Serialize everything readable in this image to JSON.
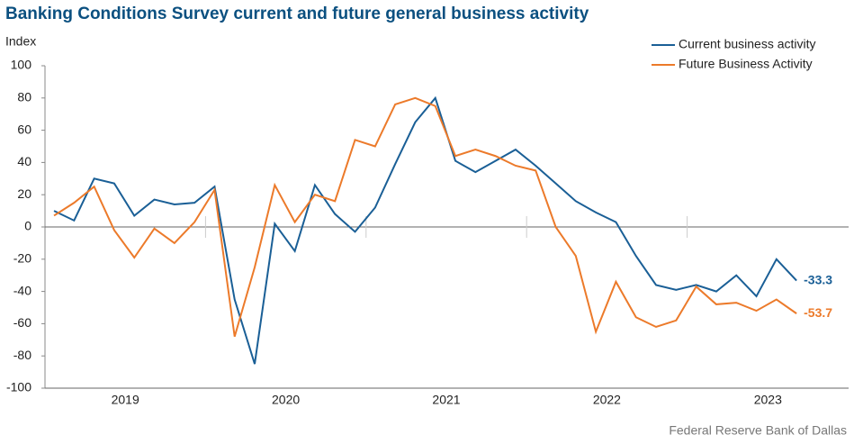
{
  "chart_data": {
    "type": "line",
    "title": "Banking Conditions Survey current and future general business activity",
    "y_label": "Index",
    "source": "Federal Reserve Bank of Dallas",
    "categories": [
      "2019",
      "2019",
      "2019",
      "2019",
      "2019",
      "2019",
      "2019",
      "2019",
      "2020",
      "2020",
      "2020",
      "2020",
      "2020",
      "2020",
      "2020",
      "2020",
      "2021",
      "2021",
      "2021",
      "2021",
      "2021",
      "2021",
      "2021",
      "2021",
      "2022",
      "2022",
      "2022",
      "2022",
      "2022",
      "2022",
      "2022",
      "2022",
      "2023",
      "2023",
      "2023",
      "2023",
      "2023",
      "2023"
    ],
    "series": [
      {
        "name": "Current business activity",
        "color": "#1a5f96",
        "values": [
          10,
          4,
          30,
          27,
          7,
          17,
          14,
          15,
          25,
          -45,
          -85,
          2,
          -15,
          26,
          8,
          -3,
          12,
          39,
          65,
          80,
          41,
          34,
          41,
          48,
          38,
          27,
          16,
          9,
          3,
          -18,
          -36,
          -39,
          -36,
          -40,
          -30,
          -43,
          -20,
          -33.3
        ]
      },
      {
        "name": "Future Business Activity",
        "color": "#ec7a2a",
        "values": [
          7,
          15,
          25,
          -2,
          -19,
          -1,
          -10,
          3,
          23,
          -68,
          -25,
          26,
          3,
          20,
          16,
          54,
          50,
          76,
          80,
          75,
          44,
          48,
          44,
          38,
          35,
          0,
          -18,
          -65,
          -34,
          -56,
          -62,
          -58,
          -37,
          -48,
          -47,
          -52,
          -45,
          -53.7
        ]
      }
    ],
    "ylim": [
      -100,
      100
    ],
    "yticks": [
      -100,
      -80,
      -60,
      -40,
      -20,
      0,
      20,
      40,
      60,
      80,
      100
    ],
    "grid": false,
    "legend": "top-right"
  }
}
